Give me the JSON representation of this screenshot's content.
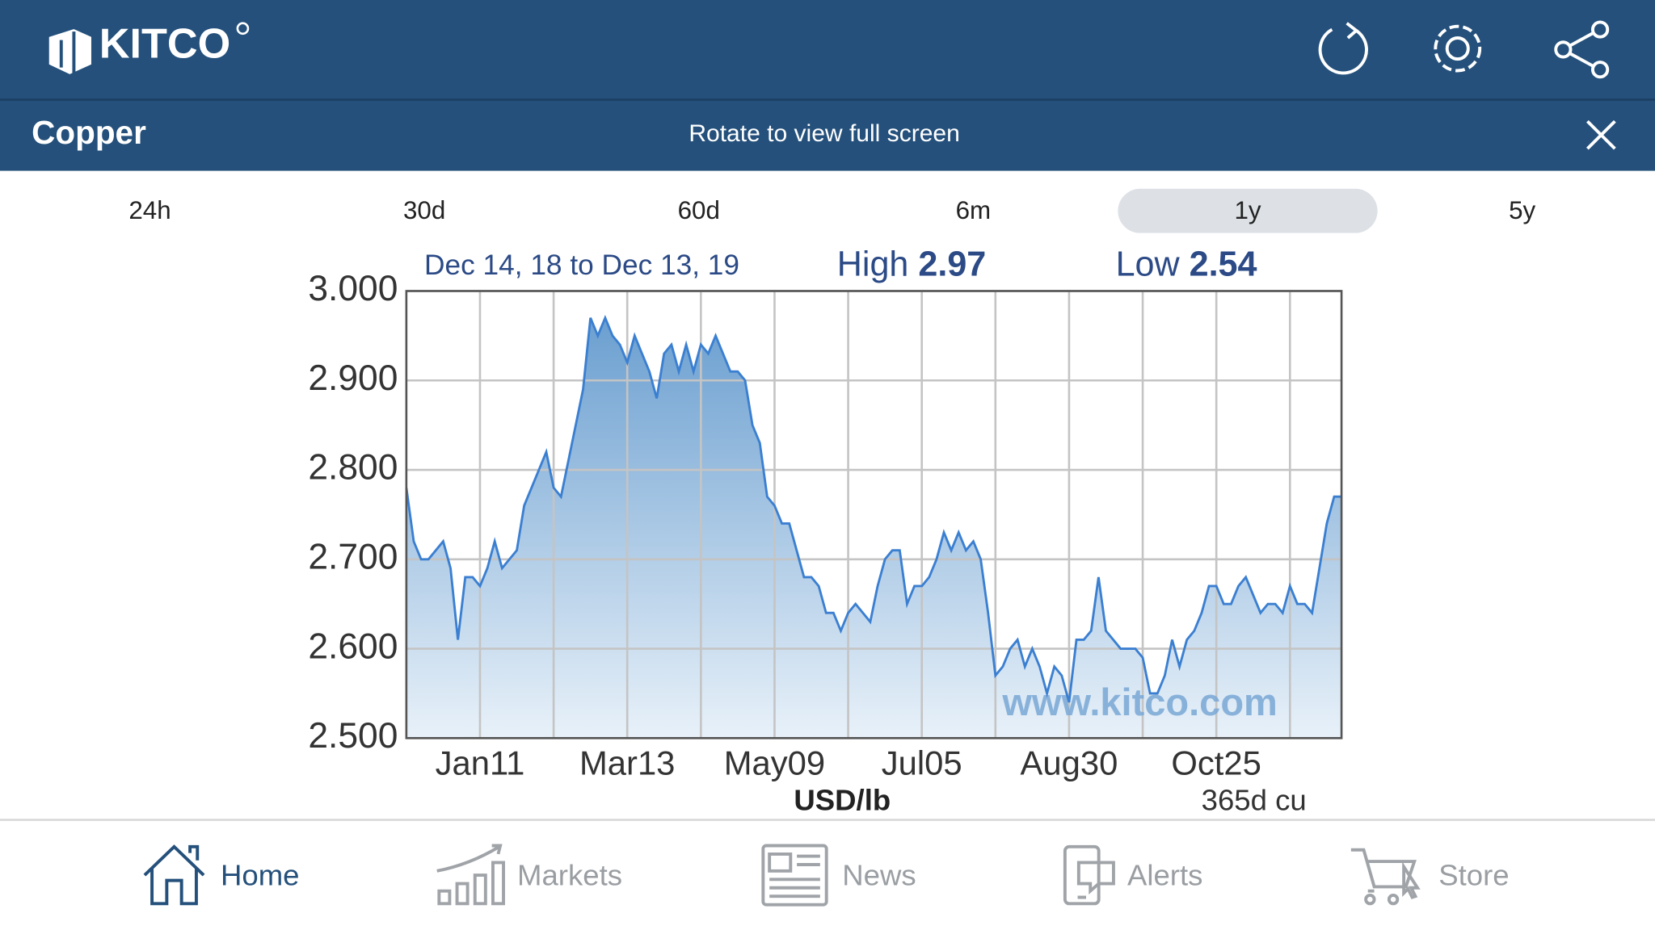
{
  "header": {
    "logo": "KITCO"
  },
  "subheader": {
    "title": "Copper",
    "hint": "Rotate to view full screen"
  },
  "tabs": [
    "24h",
    "30d",
    "60d",
    "6m",
    "1y",
    "5y"
  ],
  "selected_tab": 4,
  "chart_data": {
    "type": "area",
    "period": "Dec 14, 18 to Dec 13, 19",
    "high_label": "High",
    "high": "2.97",
    "low_label": "Low",
    "low": "2.54",
    "xlabel": "USD/lb",
    "note": "365d cu",
    "watermark": "www.kitco.com",
    "color": "#3b7fd1",
    "grid": true,
    "categories": [
      null,
      null,
      null,
      null,
      null,
      null,
      null,
      null,
      null,
      null,
      "Jan11",
      null,
      null,
      null,
      null,
      null,
      null,
      null,
      null,
      null,
      null,
      null,
      null,
      null,
      null,
      null,
      null,
      null,
      null,
      null,
      "Mar13",
      null,
      null,
      null,
      null,
      null,
      null,
      null,
      null,
      null,
      null,
      null,
      null,
      null,
      null,
      null,
      null,
      null,
      null,
      null,
      "May09",
      null,
      null,
      null,
      null,
      null,
      null,
      null,
      null,
      null,
      null,
      null,
      null,
      null,
      null,
      null,
      null,
      null,
      null,
      null,
      "Jul05",
      null,
      null,
      null,
      null,
      null,
      null,
      null,
      null,
      null,
      null,
      null,
      null,
      null,
      null,
      null,
      null,
      null,
      null,
      null,
      "Aug30",
      null,
      null,
      null,
      null,
      null,
      null,
      null,
      null,
      null,
      null,
      null,
      null,
      null,
      null,
      null,
      null,
      null,
      null,
      null,
      "Oct25",
      null,
      null,
      null,
      null,
      null,
      null,
      null,
      null,
      null,
      null,
      null,
      null,
      null,
      null,
      null,
      null,
      null
    ],
    "values": [
      2.78,
      2.72,
      2.7,
      2.7,
      2.71,
      2.72,
      2.69,
      2.61,
      2.68,
      2.68,
      2.67,
      2.69,
      2.72,
      2.69,
      2.7,
      2.71,
      2.76,
      2.78,
      2.8,
      2.82,
      2.78,
      2.77,
      2.81,
      2.85,
      2.89,
      2.97,
      2.95,
      2.97,
      2.95,
      2.94,
      2.92,
      2.95,
      2.93,
      2.91,
      2.88,
      2.93,
      2.94,
      2.91,
      2.94,
      2.91,
      2.94,
      2.93,
      2.95,
      2.93,
      2.91,
      2.91,
      2.9,
      2.85,
      2.83,
      2.77,
      2.76,
      2.74,
      2.74,
      2.71,
      2.68,
      2.68,
      2.67,
      2.64,
      2.64,
      2.62,
      2.64,
      2.65,
      2.64,
      2.63,
      2.67,
      2.7,
      2.71,
      2.71,
      2.65,
      2.67,
      2.67,
      2.68,
      2.7,
      2.73,
      2.71,
      2.73,
      2.71,
      2.72,
      2.7,
      2.64,
      2.57,
      2.58,
      2.6,
      2.61,
      2.58,
      2.6,
      2.58,
      2.55,
      2.58,
      2.57,
      2.54,
      2.61,
      2.61,
      2.62,
      2.68,
      2.62,
      2.61,
      2.6,
      2.6,
      2.6,
      2.59,
      2.55,
      2.55,
      2.57,
      2.61,
      2.58,
      2.61,
      2.62,
      2.64,
      2.67,
      2.67,
      2.65,
      2.65,
      2.67,
      2.68,
      2.66,
      2.64,
      2.65,
      2.65,
      2.64,
      2.67,
      2.65,
      2.65,
      2.64,
      2.69,
      2.74,
      2.77,
      2.77
    ],
    "ylim": [
      2.5,
      3.0
    ],
    "yticks": [
      {
        "value": 2.5,
        "label": "2.500"
      },
      {
        "value": 2.6,
        "label": "2.600"
      },
      {
        "value": 2.7,
        "label": "2.700"
      },
      {
        "value": 2.8,
        "label": "2.800"
      },
      {
        "value": 2.9,
        "label": "2.900"
      },
      {
        "value": 3.0,
        "label": "3.000"
      }
    ]
  },
  "nav": [
    "Home",
    "Markets",
    "News",
    "Alerts",
    "Store"
  ],
  "active_nav": 0
}
